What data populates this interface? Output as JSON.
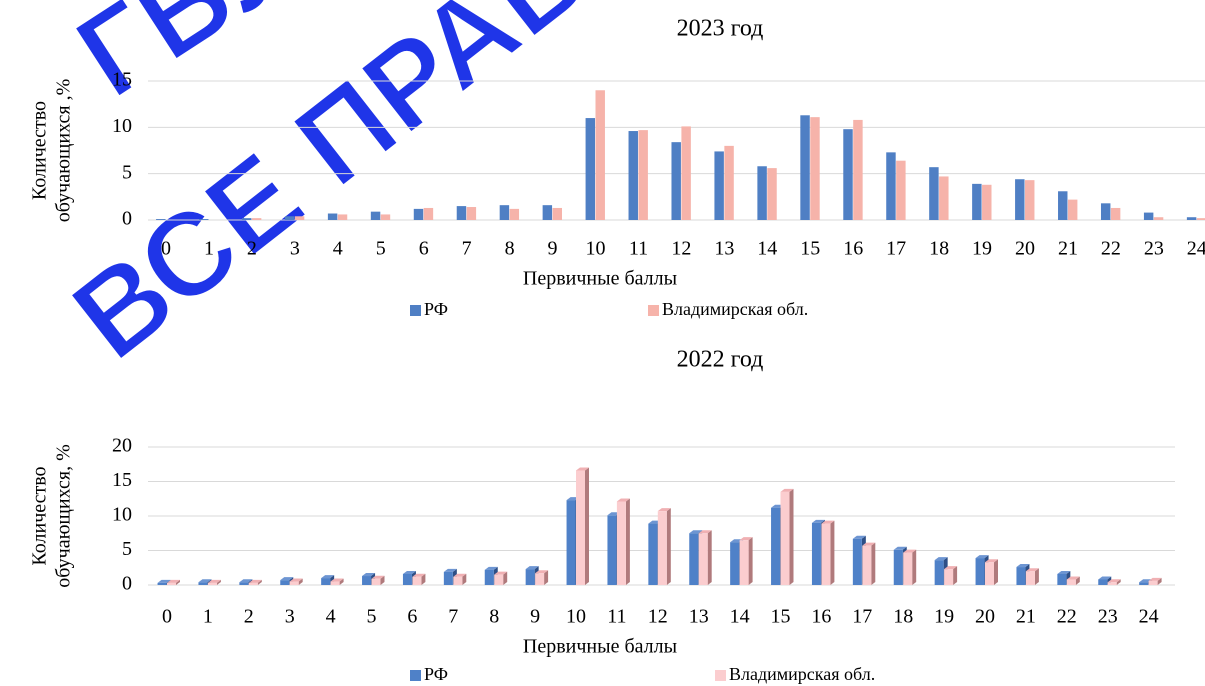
{
  "chart_data": [
    {
      "type": "bar",
      "title": "2023 год",
      "ylabel": [
        "Количество",
        "обучающихся ,%"
      ],
      "xlabel": "Первичные баллы",
      "categories": [
        "0",
        "1",
        "2",
        "3",
        "4",
        "5",
        "6",
        "7",
        "8",
        "9",
        "10",
        "11",
        "12",
        "13",
        "14",
        "15",
        "16",
        "17",
        "18",
        "19",
        "20",
        "21",
        "22",
        "23",
        "24"
      ],
      "series": [
        {
          "name": "РФ",
          "color": "#4f7fc4",
          "values": [
            0.1,
            0.1,
            0.2,
            0.4,
            0.7,
            0.9,
            1.2,
            1.5,
            1.6,
            1.6,
            11.0,
            9.6,
            8.4,
            7.4,
            5.8,
            11.3,
            9.8,
            7.3,
            5.7,
            3.9,
            4.4,
            3.1,
            1.8,
            0.8,
            0.3
          ]
        },
        {
          "name": "Владимирская обл.",
          "color": "#f6b3aa",
          "values": [
            0,
            0,
            0.2,
            0.4,
            0.6,
            0.6,
            1.3,
            1.4,
            1.2,
            1.3,
            14.0,
            9.7,
            10.1,
            8.0,
            5.6,
            11.1,
            10.8,
            6.4,
            4.7,
            3.8,
            4.3,
            2.2,
            1.3,
            0.3,
            0.2
          ]
        }
      ],
      "ylim": [
        0,
        15
      ],
      "yticks": [
        0,
        5,
        10,
        15
      ],
      "grid": true
    },
    {
      "type": "bar3d",
      "title": "2022 год",
      "ylabel": [
        "Количество",
        "обучающихся, %"
      ],
      "xlabel": "Первичные баллы",
      "categories": [
        "0",
        "1",
        "2",
        "3",
        "4",
        "5",
        "6",
        "7",
        "8",
        "9",
        "10",
        "11",
        "12",
        "13",
        "14",
        "15",
        "16",
        "17",
        "18",
        "19",
        "20",
        "21",
        "22",
        "23",
        "24"
      ],
      "series": [
        {
          "name": "РФ",
          "color": "#4f81c8",
          "values": [
            0.3,
            0.4,
            0.4,
            0.7,
            1.0,
            1.3,
            1.6,
            1.9,
            2.2,
            2.3,
            12.3,
            10.1,
            8.9,
            7.5,
            6.2,
            11.2,
            9.0,
            6.7,
            5.1,
            3.6,
            3.9,
            2.6,
            1.6,
            0.8,
            0.4
          ]
        },
        {
          "name": "Владимирская обл.",
          "color": "#fbcdcf",
          "values": [
            0.3,
            0.3,
            0.3,
            0.5,
            0.5,
            0.9,
            1.2,
            1.2,
            1.5,
            1.7,
            16.6,
            12.1,
            10.7,
            7.5,
            6.5,
            13.5,
            8.9,
            5.7,
            4.7,
            2.3,
            3.3,
            2.0,
            0.8,
            0.4,
            0.6
          ]
        }
      ],
      "ylim": [
        0,
        20
      ],
      "yticks": [
        0,
        5,
        10,
        15,
        20
      ],
      "grid": true
    }
  ],
  "watermark": [
    "ГБУ",
    "ВСЕ ПРАВ"
  ]
}
